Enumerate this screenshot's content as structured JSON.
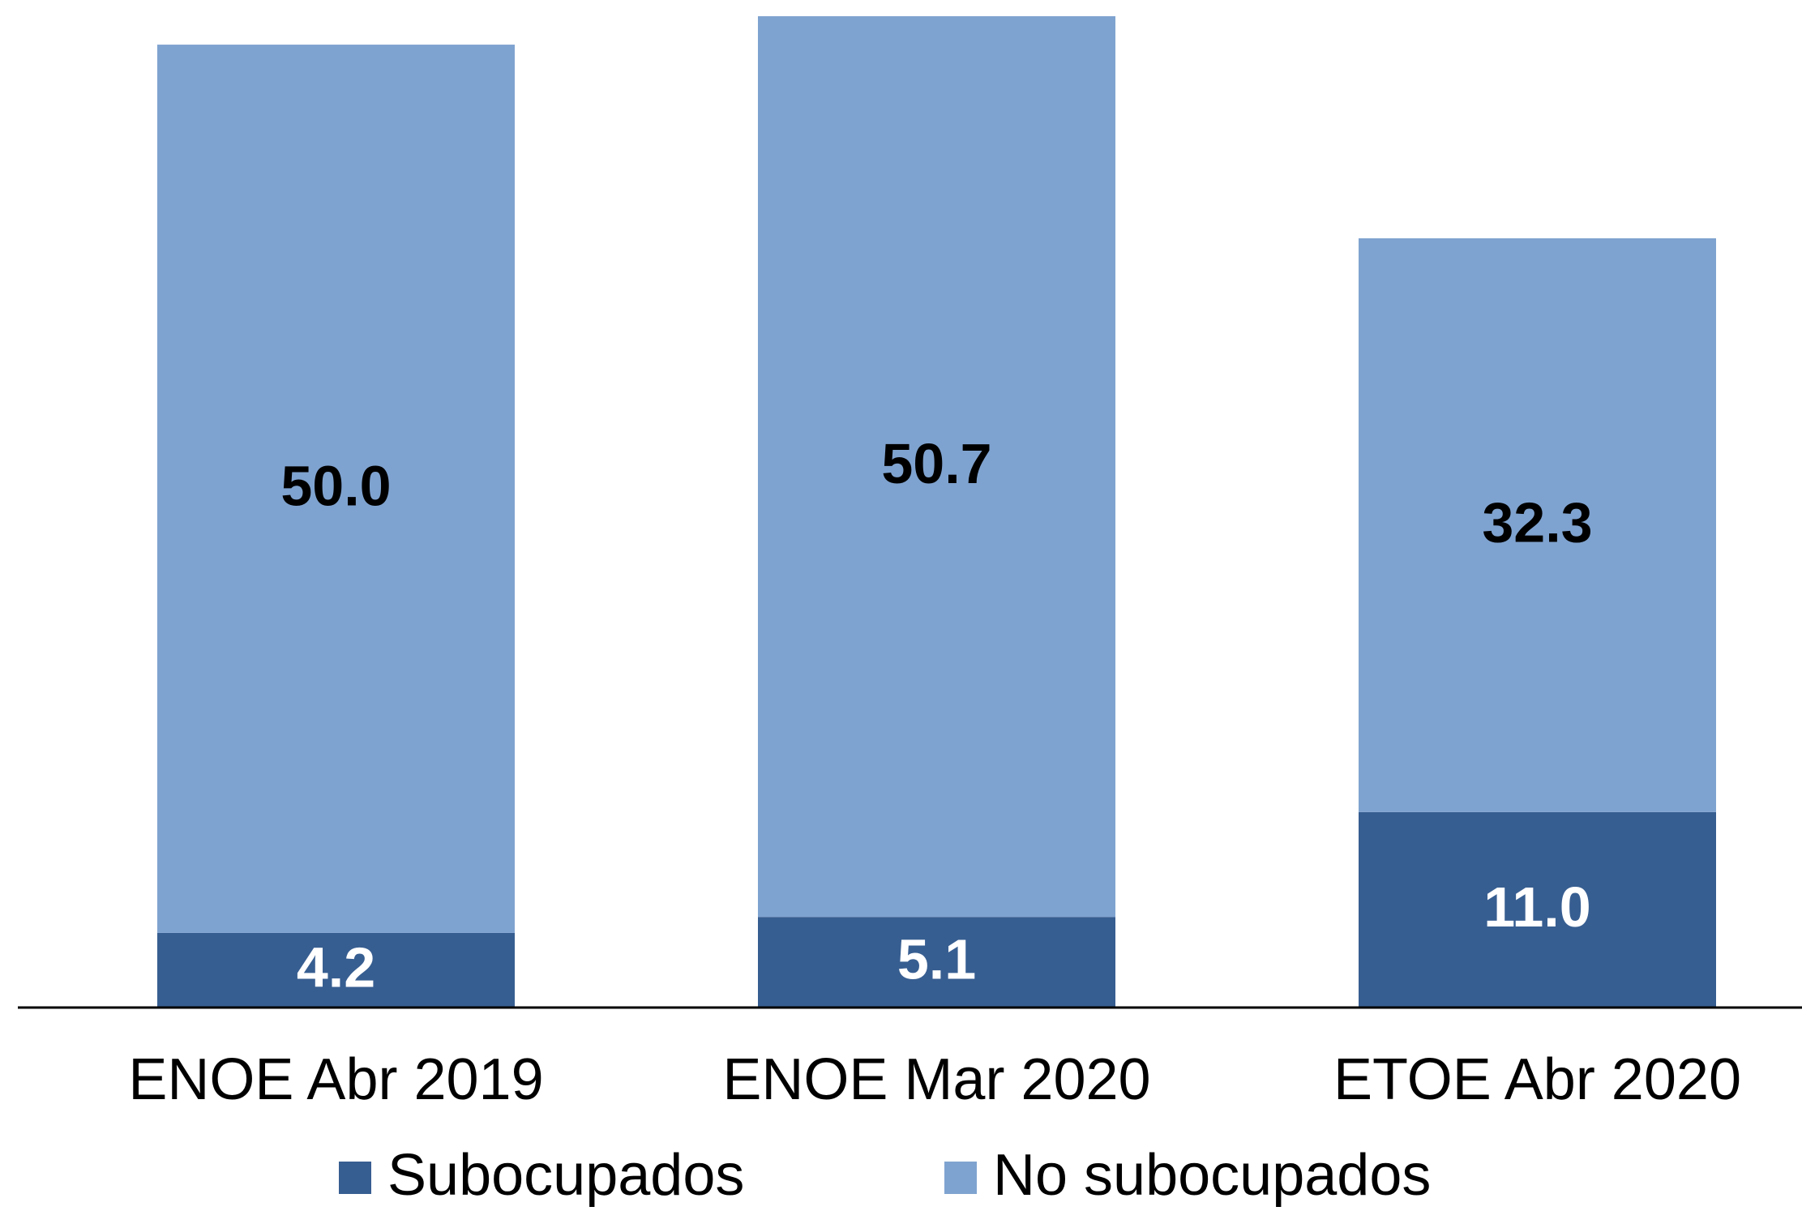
{
  "chart_data": {
    "type": "stacked_bar",
    "categories": [
      "ENOE Abr 2019",
      "ENOE Mar 2020",
      "ETOE Abr 2020"
    ],
    "series": [
      {
        "name": "Subocupados",
        "color": "#375e91",
        "label_color": "#ffffff",
        "values": [
          4.2,
          5.1,
          11.0
        ],
        "value_labels": [
          "4.2",
          "5.1",
          "11.0"
        ]
      },
      {
        "name": "No subocupados",
        "color": "#7fa3d0",
        "label_color": "#000000",
        "values": [
          50.0,
          50.7,
          32.3
        ],
        "value_labels": [
          "50.0",
          "50.7",
          "32.3"
        ]
      }
    ],
    "legend": "bottom"
  }
}
